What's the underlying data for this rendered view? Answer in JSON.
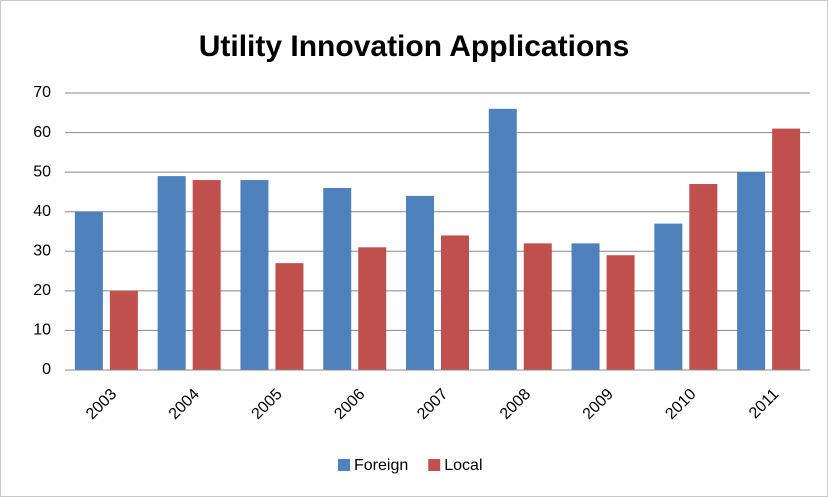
{
  "chart_data": {
    "type": "bar",
    "title": "Utility Innovation Applications",
    "categories": [
      "2003",
      "2004",
      "2005",
      "2006",
      "2007",
      "2008",
      "2009",
      "2010",
      "2011"
    ],
    "series": [
      {
        "name": "Foreign",
        "color": "#4f81bd",
        "values": [
          40,
          49,
          48,
          46,
          44,
          66,
          32,
          37,
          50
        ]
      },
      {
        "name": "Local",
        "color": "#c0504d",
        "values": [
          20,
          48,
          27,
          31,
          34,
          32,
          29,
          47,
          61
        ]
      }
    ],
    "ylim": [
      0,
      70
    ],
    "yticks": [
      0,
      10,
      20,
      30,
      40,
      50,
      60,
      70
    ],
    "grid": true,
    "legend": "bottom"
  }
}
